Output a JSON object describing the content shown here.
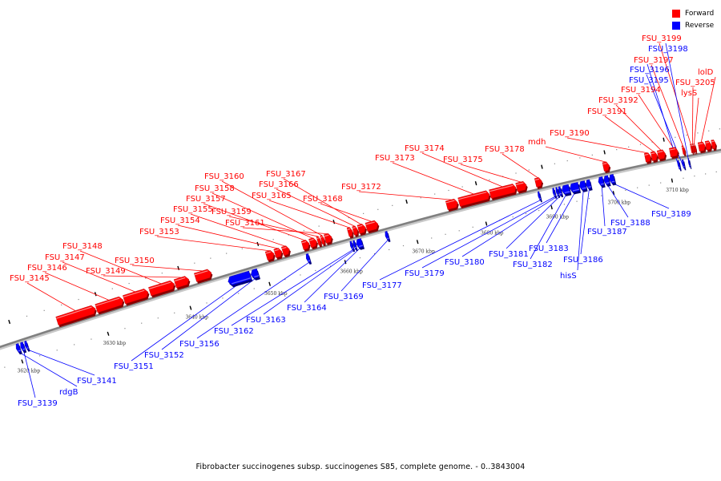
{
  "legend": {
    "forward_label": "Forward",
    "reverse_label": "Reverse",
    "forward_color": "#ff0000",
    "reverse_color": "#0000ff"
  },
  "caption": "Fibrobacter succinogenes subsp. succinogenes S85, complete genome. - 0..3843004",
  "colors": {
    "backbone": "#808080",
    "forward": "#ff0000",
    "reverse": "#0000ff"
  },
  "ticks": [
    {
      "kbp": 3620,
      "label": "3620 kbp"
    },
    {
      "kbp": 3630,
      "label": "3630 kbp"
    },
    {
      "kbp": 3640,
      "label": "3640 kbp"
    },
    {
      "kbp": 3650,
      "label": "3650 kbp"
    },
    {
      "kbp": 3660,
      "label": "3660 kbp"
    },
    {
      "kbp": 3670,
      "label": "3670 kbp"
    },
    {
      "kbp": 3680,
      "label": "3680 kbp"
    },
    {
      "kbp": 3690,
      "label": "3690 kbp"
    },
    {
      "kbp": 3700,
      "label": "3700 kbp"
    },
    {
      "kbp": 3710,
      "label": "3710 kbp"
    }
  ],
  "forward_genes": [
    {
      "name": "FSU_3145",
      "start": 3625.0,
      "end": 3629.5
    },
    {
      "name": "FSU_3146",
      "start": 3629.6,
      "end": 3632.8
    },
    {
      "name": "FSU_3147",
      "start": 3632.9,
      "end": 3635.8
    },
    {
      "name": "FSU_3148",
      "start": 3636.0,
      "end": 3639.0
    },
    {
      "name": "FSU_3149",
      "start": 3639.1,
      "end": 3640.8
    },
    {
      "name": "FSU_3150",
      "start": 3641.6,
      "end": 3643.6
    },
    {
      "name": "FSU_3153",
      "start": 3650.6,
      "end": 3651.6
    },
    {
      "name": "FSU_3154",
      "start": 3651.7,
      "end": 3652.6
    },
    {
      "name": "FSU_3155",
      "start": 3652.7,
      "end": 3653.6
    },
    {
      "name": "FSU_3157",
      "start": 3655.3,
      "end": 3656.2
    },
    {
      "name": "FSU_3158",
      "start": 3656.3,
      "end": 3657.2
    },
    {
      "name": "FSU_3159",
      "start": 3657.3,
      "end": 3657.7
    },
    {
      "name": "FSU_3160",
      "start": 3657.8,
      "end": 3658.2
    },
    {
      "name": "FSU_3161",
      "start": 3658.3,
      "end": 3659.2
    },
    {
      "name": "FSU_3165",
      "start": 3661.4,
      "end": 3662.0
    },
    {
      "name": "FSU_3166",
      "start": 3662.1,
      "end": 3662.7
    },
    {
      "name": "FSU_3167",
      "start": 3662.8,
      "end": 3663.8
    },
    {
      "name": "FSU_3168",
      "start": 3663.9,
      "end": 3665.5
    },
    {
      "name": "FSU_3172",
      "start": 3675.2,
      "end": 3676.8
    },
    {
      "name": "FSU_3173",
      "start": 3677.0,
      "end": 3681.5
    },
    {
      "name": "FSU_3174",
      "start": 3681.6,
      "end": 3685.5
    },
    {
      "name": "FSU_3175",
      "start": 3685.6,
      "end": 3687.1
    },
    {
      "name": "FSU_3178",
      "start": 3688.5,
      "end": 3689.5
    },
    {
      "name": "mdh",
      "start": 3699.3,
      "end": 3700.3
    },
    {
      "name": "FSU_3190",
      "start": 3706.3,
      "end": 3707.3
    },
    {
      "name": "FSU_3191",
      "start": 3707.4,
      "end": 3708.4
    },
    {
      "name": "FSU_3192",
      "start": 3708.5,
      "end": 3709.8
    },
    {
      "name": "FSU_3194",
      "start": 3710.6,
      "end": 3712.0
    },
    {
      "name": "FSU_3197",
      "start": 3712.8,
      "end": 3713.2
    },
    {
      "name": "FSU_3199",
      "start": 3714.3,
      "end": 3714.55
    },
    {
      "name": "FSU_3205",
      "start": 3714.6,
      "end": 3714.85
    },
    {
      "name": "lysS",
      "start": 3714.9,
      "end": 3715.15
    },
    {
      "name": "lolD",
      "start": 3715.7,
      "end": 3716.9
    },
    {
      "name": "",
      "start": 3717.0,
      "end": 3718.0
    },
    {
      "name": "",
      "start": 3718.1,
      "end": 3718.8
    }
  ],
  "reverse_genes": [
    {
      "name": "FSU_3139",
      "start": 3620.3,
      "end": 3620.7
    },
    {
      "name": "FSU_3141",
      "start": 3620.8,
      "end": 3621.1
    },
    {
      "name": "FSU_3151",
      "start": 3645.2,
      "end": 3648.0
    },
    {
      "name": "FSU_3152",
      "start": 3648.1,
      "end": 3649.0
    },
    {
      "name": "FSU_3156",
      "start": 3655.3,
      "end": 3655.7
    },
    {
      "name": "FSU_3162",
      "start": 3661.2,
      "end": 3661.5
    },
    {
      "name": "FSU_3163",
      "start": 3661.6,
      "end": 3661.9
    },
    {
      "name": "FSU_3164",
      "start": 3662.0,
      "end": 3662.8
    },
    {
      "name": "FSU_3169",
      "start": 3666.0,
      "end": 3666.4
    },
    {
      "name": "FSU_3177",
      "start": 3688.4,
      "end": 3688.7
    },
    {
      "name": "FSU_3179",
      "start": 3690.7,
      "end": 3691.0
    },
    {
      "name": "FSU_3180",
      "start": 3691.2,
      "end": 3691.5
    },
    {
      "name": "FSU_3181",
      "start": 3691.6,
      "end": 3692.0
    },
    {
      "name": "FSU_3182",
      "start": 3692.1,
      "end": 3693.3
    },
    {
      "name": "FSU_3183",
      "start": 3693.4,
      "end": 3694.8
    },
    {
      "name": "hisS",
      "start": 3694.9,
      "end": 3695.9
    },
    {
      "name": "FSU_3186",
      "start": 3696.0,
      "end": 3696.7
    },
    {
      "name": "FSU_3187",
      "start": 3698.0,
      "end": 3698.8
    },
    {
      "name": "FSU_3188",
      "start": 3698.9,
      "end": 3699.7
    },
    {
      "name": "FSU_3189",
      "start": 3699.8,
      "end": 3700.6
    },
    {
      "name": "FSU_3196",
      "start": 3711.5,
      "end": 3711.8
    },
    {
      "name": "FSU_3195",
      "start": 3712.3,
      "end": 3712.6
    },
    {
      "name": "FSU_3198",
      "start": 3713.4,
      "end": 3713.6
    },
    {
      "name": "rdgB",
      "start": 3619.8,
      "end": 3620.2
    }
  ],
  "labels": {
    "forward": [
      {
        "gene": "FSU_3145",
        "text": "FSU_3145"
      },
      {
        "gene": "FSU_3146",
        "text": "FSU_3146"
      },
      {
        "gene": "FSU_3147",
        "text": "FSU_3147"
      },
      {
        "gene": "FSU_3148",
        "text": "FSU_3148"
      },
      {
        "gene": "FSU_3149",
        "text": "FSU_3149"
      },
      {
        "gene": "FSU_3150",
        "text": "FSU_3150"
      },
      {
        "gene": "FSU_3153",
        "text": "FSU_3153"
      },
      {
        "gene": "FSU_3154",
        "text": "FSU_3154"
      },
      {
        "gene": "FSU_3155",
        "text": "FSU_3155"
      },
      {
        "gene": "FSU_3157",
        "text": "FSU_3157"
      },
      {
        "gene": "FSU_3158",
        "text": "FSU_3158"
      },
      {
        "gene": "FSU_3159",
        "text": "FSU_3159"
      },
      {
        "gene": "FSU_3160",
        "text": "FSU_3160"
      },
      {
        "gene": "FSU_3161",
        "text": "FSU_3161"
      },
      {
        "gene": "FSU_3165",
        "text": "FSU_3165"
      },
      {
        "gene": "FSU_3166",
        "text": "FSU_3166"
      },
      {
        "gene": "FSU_3167",
        "text": "FSU_3167"
      },
      {
        "gene": "FSU_3168",
        "text": "FSU_3168"
      },
      {
        "gene": "FSU_3172",
        "text": "FSU_3172"
      },
      {
        "gene": "FSU_3173",
        "text": "FSU_3173"
      },
      {
        "gene": "FSU_3174",
        "text": "FSU_3174"
      },
      {
        "gene": "FSU_3175",
        "text": "FSU_3175"
      },
      {
        "gene": "FSU_3178",
        "text": "FSU_3178"
      },
      {
        "gene": "mdh",
        "text": "mdh"
      },
      {
        "gene": "FSU_3190",
        "text": "FSU_3190"
      },
      {
        "gene": "FSU_3191",
        "text": "FSU_3191"
      },
      {
        "gene": "FSU_3192",
        "text": "FSU_3192"
      },
      {
        "gene": "FSU_3194",
        "text": "FSU_3194"
      },
      {
        "gene": "FSU_3197",
        "text": "FSU_3197"
      },
      {
        "gene": "FSU_3199",
        "text": "FSU_3199"
      },
      {
        "gene": "FSU_3205",
        "text": "FSU_3205"
      },
      {
        "gene": "lysS",
        "text": "lysS"
      },
      {
        "gene": "lolD",
        "text": "lolD"
      }
    ],
    "reverse": [
      {
        "gene": "FSU_3139",
        "text": "FSU_3139"
      },
      {
        "gene": "rdgB",
        "text": "rdgB"
      },
      {
        "gene": "FSU_3141",
        "text": "FSU_3141"
      },
      {
        "gene": "FSU_3151",
        "text": "FSU_3151"
      },
      {
        "gene": "FSU_3152",
        "text": "FSU_3152"
      },
      {
        "gene": "FSU_3156",
        "text": "FSU_3156"
      },
      {
        "gene": "FSU_3162",
        "text": "FSU_3162"
      },
      {
        "gene": "FSU_3163",
        "text": "FSU_3163"
      },
      {
        "gene": "FSU_3164",
        "text": "FSU_3164"
      },
      {
        "gene": "FSU_3169",
        "text": "FSU_3169"
      },
      {
        "gene": "FSU_3177",
        "text": "FSU_3177"
      },
      {
        "gene": "FSU_3179",
        "text": "FSU_3179"
      },
      {
        "gene": "FSU_3180",
        "text": "FSU_3180"
      },
      {
        "gene": "FSU_3181",
        "text": "FSU_3181"
      },
      {
        "gene": "FSU_3182",
        "text": "FSU_3182"
      },
      {
        "gene": "FSU_3183",
        "text": "FSU_3183"
      },
      {
        "gene": "hisS",
        "text": "hisS"
      },
      {
        "gene": "FSU_3186",
        "text": "FSU_3186"
      },
      {
        "gene": "FSU_3187",
        "text": "FSU_3187"
      },
      {
        "gene": "FSU_3188",
        "text": "FSU_3188"
      },
      {
        "gene": "FSU_3189",
        "text": "FSU_3189"
      },
      {
        "gene": "FSU_3196",
        "text": "FSU_3196"
      },
      {
        "gene": "FSU_3195",
        "text": "FSU_3195"
      },
      {
        "gene": "FSU_3198",
        "text": "FSU_3198"
      }
    ]
  }
}
